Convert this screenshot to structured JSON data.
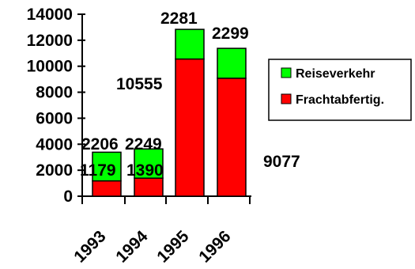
{
  "chart_data": {
    "type": "bar",
    "stacked": true,
    "categories": [
      "1993",
      "1994",
      "1995",
      "1996"
    ],
    "series": [
      {
        "name": "Frachtabfertig.",
        "color": "#ff0000",
        "values": [
          1179,
          1390,
          10555,
          9077
        ]
      },
      {
        "name": "Reiseverkehr",
        "color": "#00ff00",
        "values": [
          2206,
          2249,
          2281,
          2299
        ]
      }
    ],
    "data_labels": {
      "Frachtabfertig.": [
        "1179",
        "1390",
        "10555",
        "9077"
      ],
      "Reiseverkehr": [
        "2206",
        "2249",
        "2281",
        "2299"
      ]
    },
    "ylim": [
      0,
      14000
    ],
    "yticks": [
      "0",
      "2000",
      "4000",
      "6000",
      "8000",
      "10000",
      "12000",
      "14000"
    ],
    "grid": false,
    "legend": "right"
  }
}
